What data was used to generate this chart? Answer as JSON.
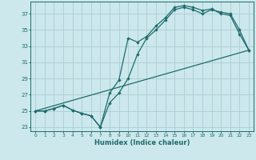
{
  "bg_color": "#cce8ec",
  "grid_color": "#aacdd4",
  "line_color": "#1e6b6b",
  "xlabel": "Humidex (Indice chaleur)",
  "xlim": [
    -0.5,
    23.5
  ],
  "ylim": [
    22.5,
    38.5
  ],
  "xticks": [
    0,
    1,
    2,
    3,
    4,
    5,
    6,
    7,
    8,
    9,
    10,
    11,
    12,
    13,
    14,
    15,
    16,
    17,
    18,
    19,
    20,
    21,
    22,
    23
  ],
  "yticks": [
    23,
    25,
    27,
    29,
    31,
    33,
    35,
    37
  ],
  "line1_x": [
    0,
    1,
    2,
    3,
    4,
    5,
    6,
    7,
    8,
    9,
    10,
    11,
    12,
    13,
    14,
    15,
    16,
    17,
    18,
    19,
    20,
    21,
    22,
    23
  ],
  "line1_y": [
    25,
    25,
    25.3,
    25.7,
    25.1,
    24.7,
    24.4,
    23.0,
    27.2,
    28.8,
    34.0,
    33.5,
    34.2,
    35.5,
    36.5,
    37.8,
    38.0,
    37.8,
    37.4,
    37.6,
    37.0,
    36.8,
    34.5,
    32.5
  ],
  "line2_x": [
    0,
    1,
    2,
    3,
    4,
    5,
    6,
    7,
    8,
    9,
    10,
    11,
    12,
    13,
    14,
    15,
    16,
    17,
    18,
    19,
    20,
    21,
    22,
    23
  ],
  "line2_y": [
    25,
    25,
    25.3,
    25.7,
    25.1,
    24.7,
    24.4,
    23.0,
    26.0,
    27.2,
    29.0,
    32.0,
    34.0,
    35.0,
    36.2,
    37.5,
    37.8,
    37.5,
    37.0,
    37.5,
    37.2,
    37.0,
    35.0,
    32.5
  ],
  "line3_x": [
    0,
    23
  ],
  "line3_y": [
    25,
    32.5
  ],
  "marker_size": 2.2,
  "linewidth": 0.9
}
